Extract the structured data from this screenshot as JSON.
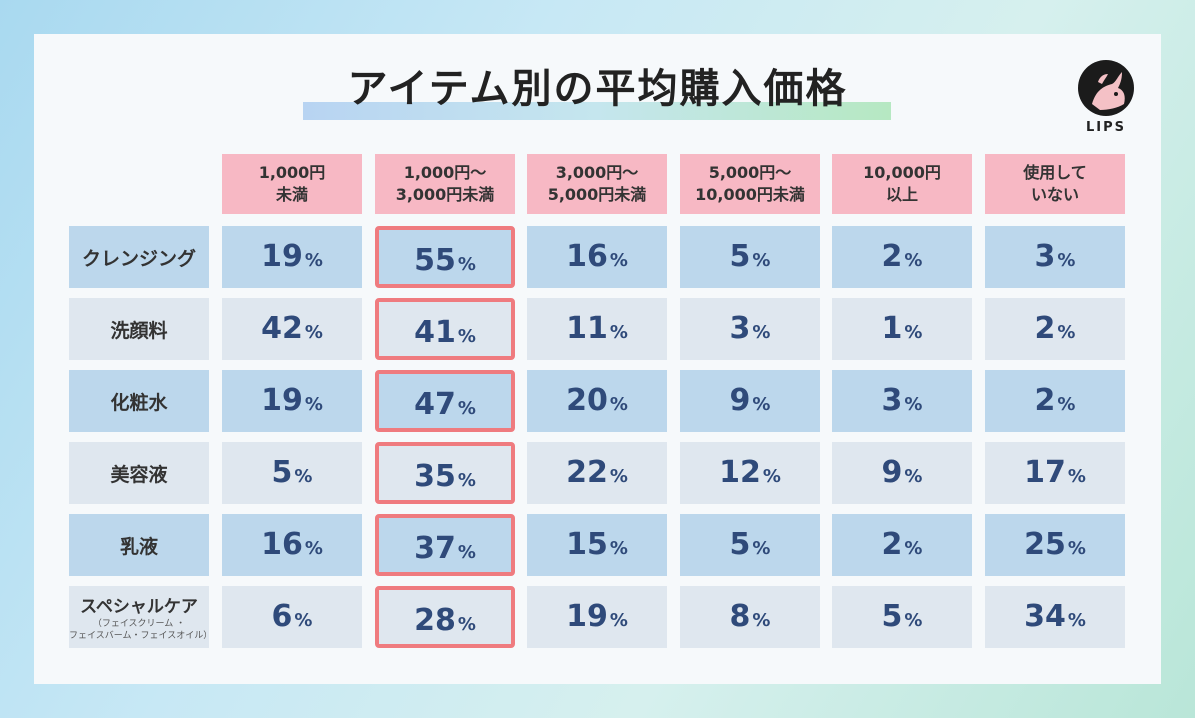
{
  "title": "アイテム別の平均購入価格",
  "logo_text": "LIPS",
  "columns": [
    "1,000円\n未満",
    "1,000円～\n3,000円未満",
    "3,000円～\n5,000円未満",
    "5,000円～\n10,000円未満",
    "10,000円\n以上",
    "使用して\nいない"
  ],
  "rows": [
    {
      "label": "クレンジング",
      "note": ""
    },
    {
      "label": "洗顔料",
      "note": ""
    },
    {
      "label": "化粧水",
      "note": ""
    },
    {
      "label": "美容液",
      "note": ""
    },
    {
      "label": "乳液",
      "note": ""
    },
    {
      "label": "スペシャルケア",
      "note": "（フェイスクリーム ・\nフェイスバーム・フェイスオイル）"
    }
  ],
  "unit": "%",
  "highlight_color": "#ef7b7f",
  "header_color": "#f7b8c4",
  "chart_data": {
    "type": "table",
    "title": "アイテム別の平均購入価格",
    "highlighted_column": "1,000円～3,000円未満",
    "columns": [
      "1,000円未満",
      "1,000円～3,000円未満",
      "3,000円～5,000円未満",
      "5,000円～10,000円未満",
      "10,000円以上",
      "使用していない"
    ],
    "series": [
      {
        "name": "クレンジング",
        "values": [
          19,
          55,
          16,
          5,
          2,
          3
        ]
      },
      {
        "name": "洗顔料",
        "values": [
          42,
          41,
          11,
          3,
          1,
          2
        ]
      },
      {
        "name": "化粧水",
        "values": [
          19,
          47,
          20,
          9,
          3,
          2
        ]
      },
      {
        "name": "美容液",
        "values": [
          5,
          35,
          22,
          12,
          9,
          17
        ]
      },
      {
        "name": "乳液",
        "values": [
          16,
          37,
          15,
          5,
          2,
          25
        ]
      },
      {
        "name": "スペシャルケア",
        "values": [
          6,
          28,
          19,
          8,
          5,
          34
        ]
      }
    ]
  }
}
